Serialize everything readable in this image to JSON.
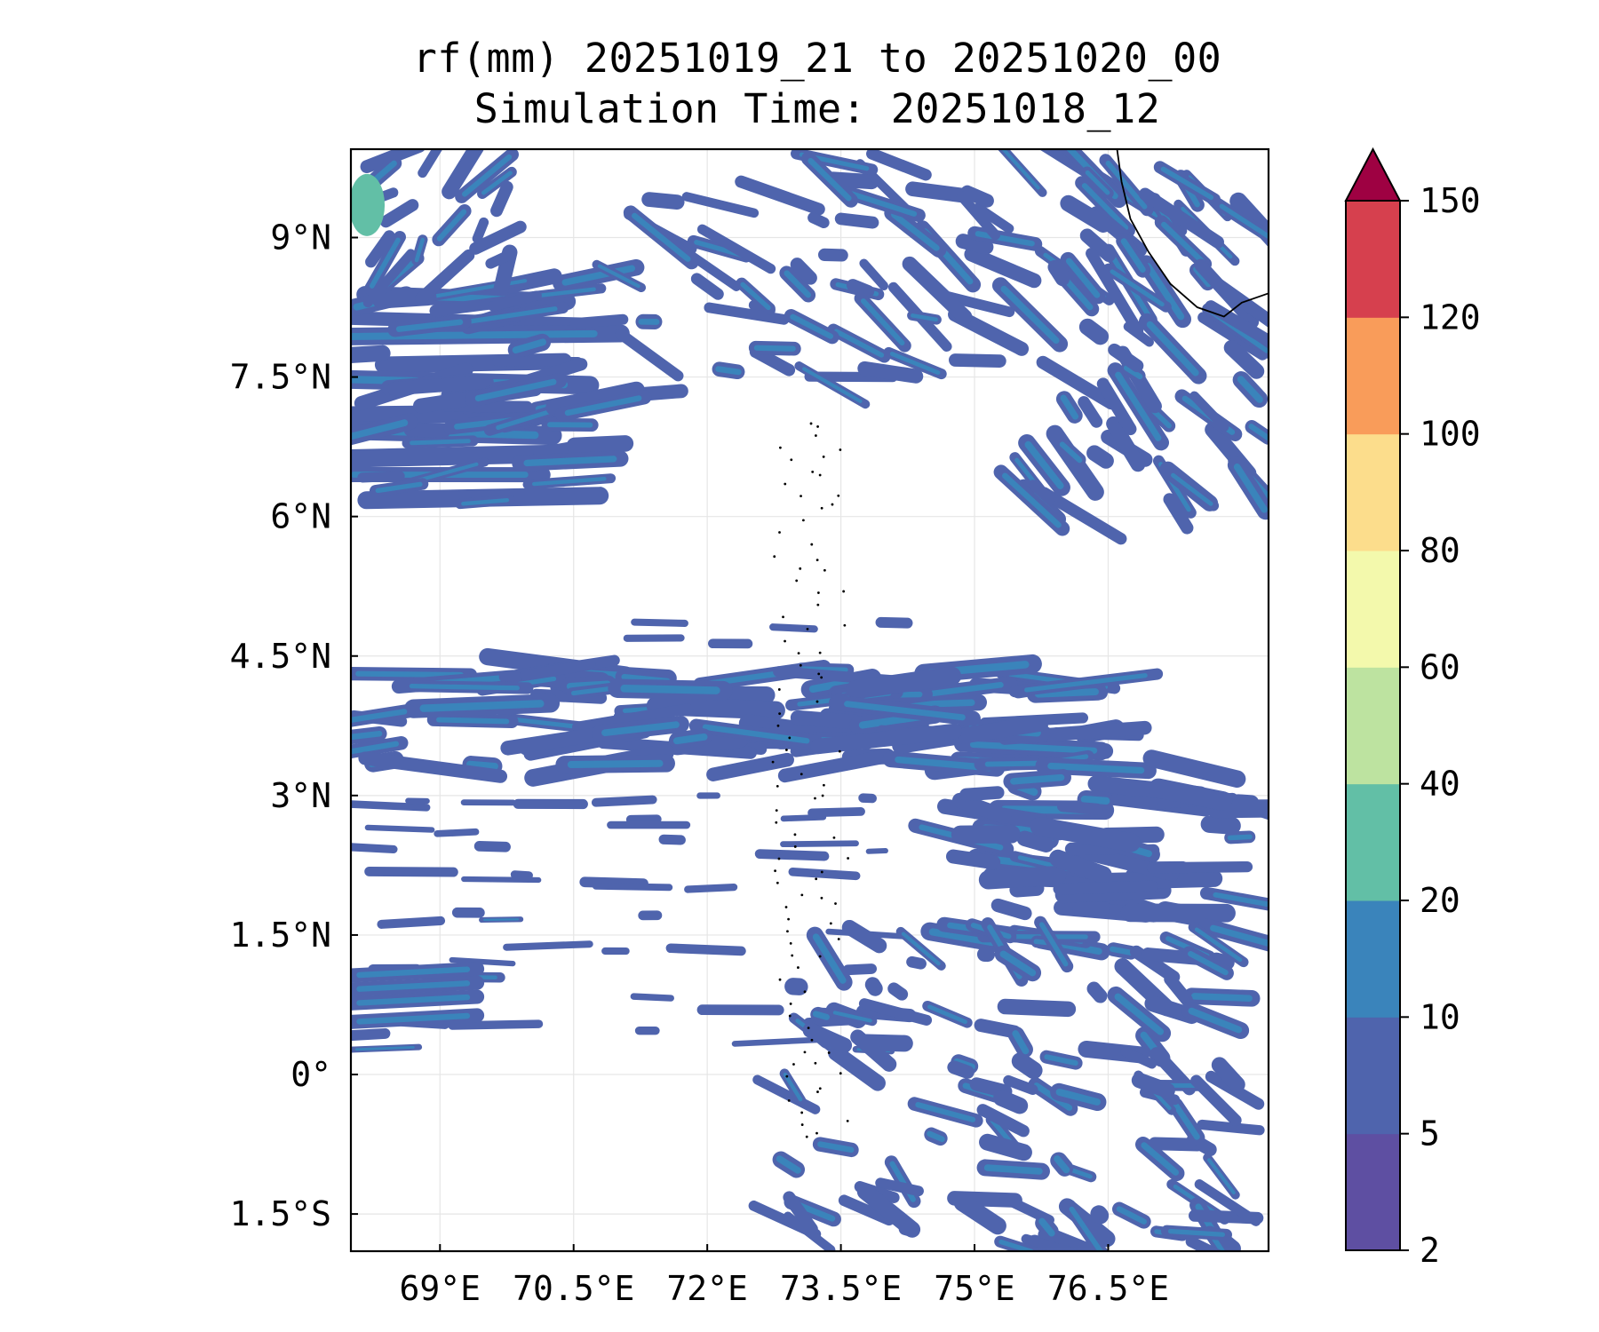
{
  "chart_data": {
    "type": "heatmap",
    "title": "rf(mm) 20251019_21 to 20251020_00",
    "subtitle": "Simulation Time: 20251018_12",
    "xlabel": "",
    "ylabel": "",
    "xlim": [
      68.0,
      78.3
    ],
    "ylim": [
      -1.9,
      9.95
    ],
    "x_ticks": [
      {
        "value": 69.0,
        "label": "69°E"
      },
      {
        "value": 70.5,
        "label": "70.5°E"
      },
      {
        "value": 72.0,
        "label": "72°E"
      },
      {
        "value": 73.5,
        "label": "73.5°E"
      },
      {
        "value": 75.0,
        "label": "75°E"
      },
      {
        "value": 76.5,
        "label": "76.5°E"
      }
    ],
    "y_ticks": [
      {
        "value": 9.0,
        "label": "9°N"
      },
      {
        "value": 7.5,
        "label": "7.5°N"
      },
      {
        "value": 6.0,
        "label": "6°N"
      },
      {
        "value": 4.5,
        "label": "4.5°N"
      },
      {
        "value": 3.0,
        "label": "3°N"
      },
      {
        "value": 1.5,
        "label": "1.5°N"
      },
      {
        "value": 0.0,
        "label": "0°"
      },
      {
        "value": -1.5,
        "label": "1.5°S"
      }
    ],
    "grid": true,
    "colorbar": {
      "levels": [
        2,
        5,
        10,
        20,
        40,
        60,
        80,
        100,
        120,
        150
      ],
      "labels": [
        "2",
        "5",
        "10",
        "20",
        "40",
        "60",
        "80",
        "100",
        "120",
        "150"
      ],
      "colors": [
        "#5e4fa2",
        "#4f64ad",
        "#3a84bb",
        "#62bfa6",
        "#bde3a0",
        "#f3f9ac",
        "#fcdd8c",
        "#f99c5a",
        "#d6404e",
        "#9e0142"
      ],
      "extend": "max"
    },
    "rain_bands": [
      {
        "name": "northwest-streaks",
        "lon_range": [
          68.0,
          71.5
        ],
        "lat_range": [
          6.1,
          9.2
        ],
        "max_level": 10
      },
      {
        "name": "northwest-cell",
        "lon": 68.2,
        "lat": 9.3,
        "level": 20
      },
      {
        "name": "north-scatter",
        "lon_range": [
          71.0,
          75.5
        ],
        "lat_range": [
          7.3,
          9.9
        ],
        "max_level": 10
      },
      {
        "name": "west-coast-india",
        "lon_range": [
          75.5,
          78.3
        ],
        "lat_range": [
          5.9,
          9.9
        ],
        "max_level": 10
      },
      {
        "name": "equatorial-band",
        "lon_range": [
          68.0,
          76.5
        ],
        "lat_range": [
          3.2,
          4.7
        ],
        "max_level": 10
      },
      {
        "name": "southeast-band",
        "lon_range": [
          74.8,
          78.3
        ],
        "lat_range": [
          1.2,
          3.3
        ],
        "max_level": 10
      },
      {
        "name": "southern-streaks",
        "lon_range": [
          68.0,
          74.0
        ],
        "lat_range": [
          0.2,
          1.5
        ],
        "max_level": 5
      },
      {
        "name": "southeast-cluster",
        "lon_range": [
          72.5,
          78.0
        ],
        "lat_range": [
          -1.9,
          1.5
        ],
        "max_level": 10
      }
    ],
    "coastlines": [
      "India west coast",
      "Maldives atolls"
    ]
  },
  "colors": {
    "frame": "#000000",
    "grid": "#e6e6e6",
    "background": "#ffffff"
  }
}
